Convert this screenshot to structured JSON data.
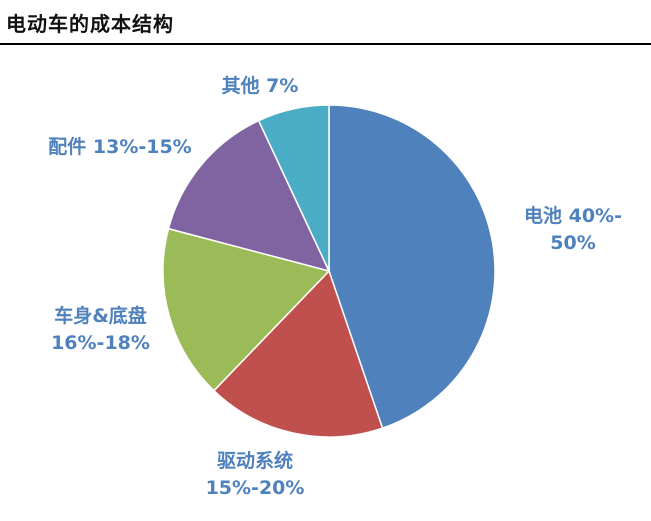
{
  "title": "电动车的成本结构",
  "chart_data": {
    "type": "pie",
    "title": "电动车的成本结构",
    "slices": [
      {
        "label_lines": [
          "电池 40%-",
          "50%"
        ],
        "value": 45,
        "color": "#4f81bd"
      },
      {
        "label_lines": [
          "驱动系统",
          "15%-20%"
        ],
        "value": 17.5,
        "color": "#c0504d"
      },
      {
        "label_lines": [
          "车身&底盘",
          "16%-18%"
        ],
        "value": 17,
        "color": "#9bbb59"
      },
      {
        "label_lines": [
          "配件 13%-15%"
        ],
        "value": 14,
        "color": "#8064a2"
      },
      {
        "label_lines": [
          "其他 7%"
        ],
        "value": 7,
        "color": "#4bacc6"
      }
    ],
    "start": "top",
    "direction": "clockwise",
    "legend": "none",
    "label_color": "#4f81bd"
  }
}
